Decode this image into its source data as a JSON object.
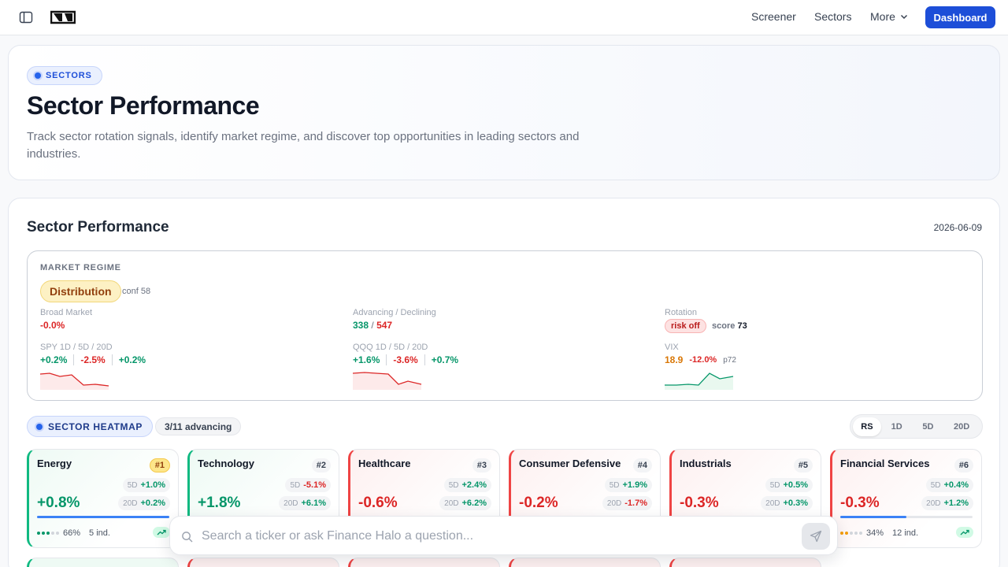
{
  "nav": {
    "links": [
      "Screener",
      "Sectors",
      "More"
    ],
    "dashboard_label": "Dashboard"
  },
  "hero": {
    "badge": "SECTORS",
    "title": "Sector Performance",
    "description": "Track sector rotation signals, identify market regime, and discover top opportunities in leading sectors and industries."
  },
  "panel": {
    "title": "Sector Performance",
    "date": "2026-06-09"
  },
  "regime": {
    "label": "MARKET REGIME",
    "badge": "Distribution",
    "conf": "conf 58",
    "broad_label": "Broad Market",
    "broad_value": "-0.0%",
    "adv_label": "Advancing / Declining",
    "advancing": "338",
    "slash": "/",
    "declining": "547",
    "rotation_label": "Rotation",
    "rotation_pill": "risk off",
    "score_label": "score",
    "score_value": "73",
    "spy_label": "SPY 1D / 5D / 20D",
    "spy": [
      "+0.2%",
      "-2.5%",
      "+0.2%"
    ],
    "qqq_label": "QQQ 1D / 5D / 20D",
    "qqq": [
      "+1.6%",
      "-3.6%",
      "+0.7%"
    ],
    "vix_label": "VIX",
    "vix_value": "18.9",
    "vix_change": "-12.0%",
    "vix_pct": "p72"
  },
  "heatmap": {
    "label": "SECTOR HEATMAP",
    "advancing": "3/11 advancing",
    "modes": [
      "RS",
      "1D",
      "5D",
      "20D"
    ],
    "active_mode": "RS"
  },
  "sectors": [
    {
      "name": "Energy",
      "rank": "#1",
      "d5": "+1.0%",
      "d20": "+0.2%",
      "value": "+0.8%",
      "breadth": "66%",
      "ind": "5 ind.",
      "breadth_level": 0.66
    },
    {
      "name": "Technology",
      "rank": "#2",
      "d5": "-5.1%",
      "d20": "+6.1%",
      "value": "+1.8%"
    },
    {
      "name": "Healthcare",
      "rank": "#3",
      "d5": "+2.4%",
      "d20": "+6.2%",
      "value": "-0.6%"
    },
    {
      "name": "Consumer Defensive",
      "rank": "#4",
      "d5": "+1.9%",
      "d20": "-1.7%",
      "value": "-0.2%"
    },
    {
      "name": "Industrials",
      "rank": "#5",
      "d5": "+0.5%",
      "d20": "+0.3%",
      "value": "-0.3%"
    },
    {
      "name": "Financial Services",
      "rank": "#6",
      "d5": "+0.4%",
      "d20": "+1.2%",
      "value": "-0.3%",
      "breadth": "34%",
      "ind": "12 ind.",
      "breadth_level": 0.34
    }
  ],
  "labels": {
    "d5": "5D",
    "d20": "20D"
  },
  "search": {
    "placeholder": "Search a ticker or ask Finance Halo a question..."
  },
  "colors": {
    "accent": "#1d4ed8",
    "positive": "#059669",
    "negative": "#dc2626",
    "warning": "#d97706"
  }
}
